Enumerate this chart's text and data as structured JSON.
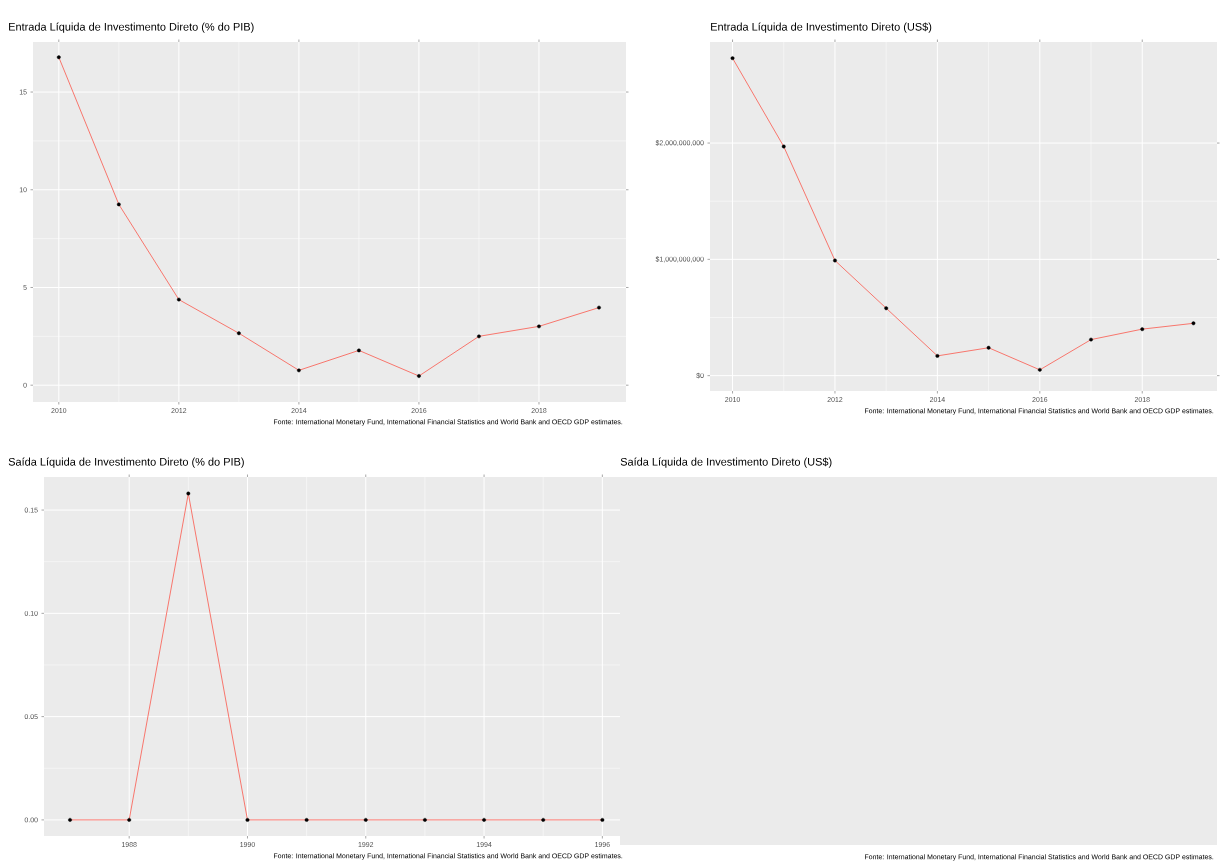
{
  "chart_data": [
    {
      "type": "line",
      "title": "Entrada Líquida de Investimento Direto (% do PIB)",
      "annotations": [
        "Fonte: International Monetary Fund, International Financial Statistics and World Bank and OECD GDP estimates."
      ],
      "x": [
        2010,
        2011,
        2012,
        2013,
        2014,
        2015,
        2016,
        2017,
        2018,
        2019
      ],
      "series": [
        {
          "color": "#f8766d",
          "values": [
            16.78,
            9.25,
            4.38,
            2.66,
            0.76,
            1.78,
            0.47,
            2.5,
            3.01,
            3.97
          ]
        }
      ],
      "xlim": [
        2009.57,
        2019.45
      ],
      "ylim": [
        -0.86,
        17.56
      ],
      "xticks": [
        2010,
        2012,
        2014,
        2016,
        2018
      ],
      "yticks": [
        0,
        5,
        10,
        15
      ],
      "grid": true,
      "marker": "circle"
    },
    {
      "type": "line",
      "title": "Entrada Líquida de Investimento Direto (US$)",
      "annotations": [
        "Fonte: International Monetary Fund, International Financial Statistics and World Bank and OECD GDP estimates."
      ],
      "x": [
        2010,
        2011,
        2012,
        2013,
        2014,
        2015,
        2016,
        2017,
        2018,
        2019
      ],
      "series": [
        {
          "color": "#f8766d",
          "values": [
            2730000000,
            1970000000,
            990000000,
            580000000,
            170000000,
            240000000,
            50000000,
            310000000,
            400000000,
            450000000
          ]
        }
      ],
      "xlim": [
        2009.56,
        2019.46
      ],
      "ylim": [
        -132000000,
        2869000000
      ],
      "xticks": [
        2010,
        2012,
        2014,
        2016,
        2018
      ],
      "yticks": [
        {
          "value": 0,
          "label": "$0"
        },
        {
          "value": 1000000000,
          "label": "$1,000,000,000"
        },
        {
          "value": 2000000000,
          "label": "$2,000,000,000"
        }
      ],
      "grid": true,
      "marker": "circle"
    },
    {
      "type": "line",
      "title": "Saída Líquida de Investimento Direto (% do PIB)",
      "annotations": [
        "Fonte: International Monetary Fund, International Financial Statistics and World Bank and OECD GDP estimates."
      ],
      "x": [
        1987,
        1988,
        1989,
        1990,
        1991,
        1992,
        1993,
        1994,
        1995,
        1996
      ],
      "series": [
        {
          "color": "#f8766d",
          "values": [
            0,
            0,
            0.158,
            0,
            0,
            0,
            0,
            0,
            0,
            0
          ]
        }
      ],
      "xlim": [
        1986.56,
        1996.4
      ],
      "ylim": [
        -0.0078,
        0.166
      ],
      "xticks": [
        1988,
        1990,
        1992,
        1994,
        1996
      ],
      "yticks": [
        {
          "value": 0,
          "label": "0.00"
        },
        {
          "value": 0.05,
          "label": "0.05"
        },
        {
          "value": 0.1,
          "label": "0.10"
        },
        {
          "value": 0.15,
          "label": "0.15"
        }
      ],
      "grid": true,
      "marker": "circle"
    },
    {
      "type": "other",
      "title": "Saída Líquida de Investimento Direto (US$)",
      "annotations": [
        "Fonte: International Monetary Fund, International Financial Statistics and World Bank and OECD GDP estimates."
      ]
    }
  ]
}
